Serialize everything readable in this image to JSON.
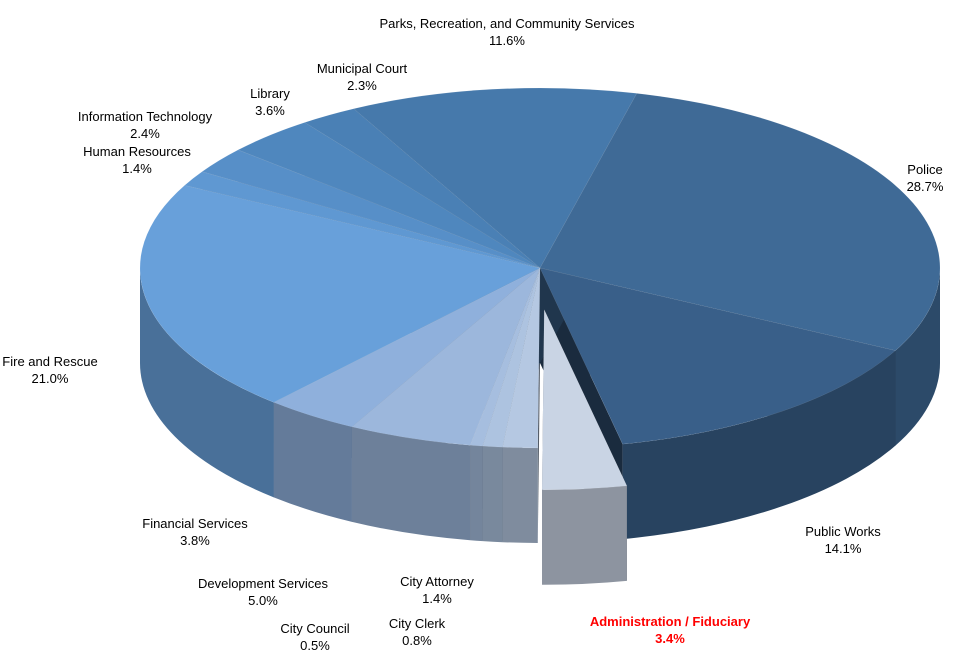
{
  "chart_data": {
    "type": "pie3d",
    "categories": [
      "Police",
      "Public Works",
      "Administration / Fiduciary",
      "City Attorney",
      "City Clerk",
      "City Council",
      "Development Services",
      "Financial Services",
      "Fire and Rescue",
      "Human Resources",
      "Information Technology",
      "Library",
      "Municipal Court",
      "Parks, Recreation, and Community Services"
    ],
    "values": [
      28.7,
      14.1,
      3.4,
      1.4,
      0.8,
      0.5,
      5.0,
      3.8,
      21.0,
      1.4,
      2.4,
      3.6,
      2.3,
      11.6
    ],
    "value_labels": [
      "28.7%",
      "14.1%",
      "3.4%",
      "1.4%",
      "0.8%",
      "0.5%",
      "5.0%",
      "3.8%",
      "21.0%",
      "1.4%",
      "2.4%",
      "3.6%",
      "2.3%",
      "11.6%"
    ],
    "colors": [
      "#3f6a96",
      "#395f89",
      "#c9d4e4",
      "#b5c8e2",
      "#adc3e0",
      "#a6bedf",
      "#9cb7dc",
      "#8fb0dc",
      "#68a0da",
      "#5f98d2",
      "#578fc8",
      "#4f87be",
      "#4a80b5",
      "#4679ab"
    ],
    "label_colors": [
      "#000000",
      "#000000",
      "#ff0000",
      "#000000",
      "#000000",
      "#000000",
      "#000000",
      "#000000",
      "#000000",
      "#000000",
      "#000000",
      "#000000",
      "#000000",
      "#000000"
    ],
    "exploded_index": 2
  }
}
